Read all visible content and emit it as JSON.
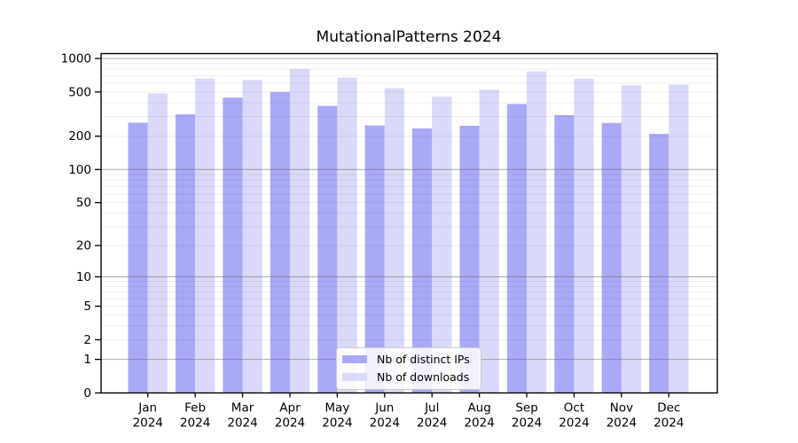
{
  "chart_data": {
    "type": "bar",
    "title": "MutationalPatterns 2024",
    "categories": [
      "Jan",
      "Feb",
      "Mar",
      "Apr",
      "May",
      "Jun",
      "Jul",
      "Aug",
      "Sep",
      "Oct",
      "Nov",
      "Dec"
    ],
    "x_sub_label": "2024",
    "series": [
      {
        "name": "Nb of distinct IPs",
        "color": "#a9a9f8",
        "values": [
          265,
          315,
          445,
          500,
          375,
          250,
          235,
          248,
          390,
          310,
          263,
          210
        ]
      },
      {
        "name": "Nb of downloads",
        "color": "#d9d9f9",
        "values": [
          485,
          660,
          640,
          805,
          675,
          540,
          455,
          525,
          765,
          660,
          575,
          583
        ]
      }
    ],
    "y_axis": {
      "scale": "log1p",
      "ticks": [
        0,
        1,
        2,
        5,
        10,
        20,
        50,
        100,
        200,
        500,
        1000
      ],
      "ylim": [
        0,
        1000
      ]
    },
    "grid": {
      "major_values": [
        1,
        10,
        100,
        1000
      ],
      "minor_multiples": [
        2,
        3,
        4,
        5,
        6,
        7,
        8,
        9
      ],
      "major_color": "rgba(110,110,110,0.55)",
      "minor_color": "rgba(0,0,0,0.07)"
    },
    "legend": {
      "position": "bottom-center"
    },
    "xlabel": "",
    "ylabel": ""
  }
}
